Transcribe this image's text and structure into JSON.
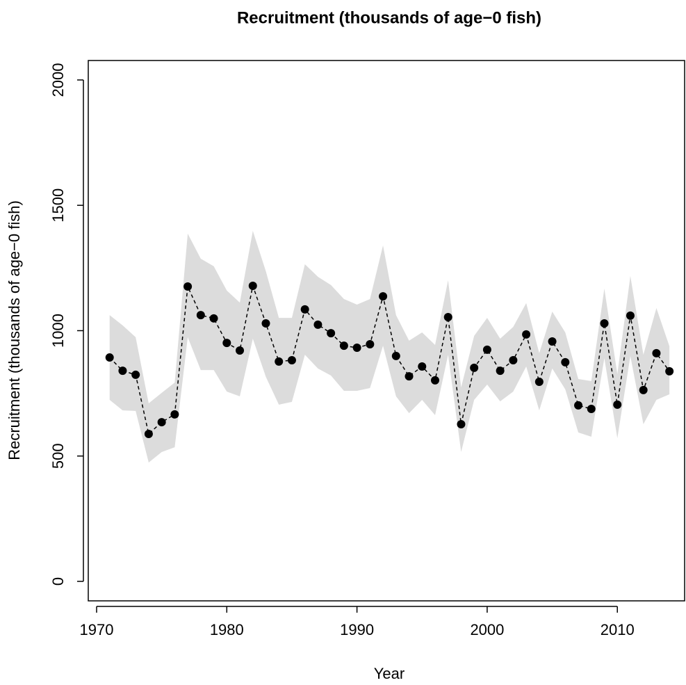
{
  "chart_data": {
    "type": "line",
    "title": "Recruitment (thousands of age−0 fish)",
    "xlabel": "Year",
    "ylabel": "Recruitment (thousands of age−0 fish)",
    "x": [
      1971,
      1972,
      1973,
      1974,
      1975,
      1976,
      1977,
      1978,
      1979,
      1980,
      1981,
      1982,
      1983,
      1984,
      1985,
      1986,
      1987,
      1988,
      1989,
      1990,
      1991,
      1992,
      1993,
      1994,
      1995,
      1996,
      1997,
      1998,
      1999,
      2000,
      2001,
      2002,
      2003,
      2004,
      2005,
      2006,
      2007,
      2008,
      2009,
      2010,
      2011,
      2012,
      2013,
      2014
    ],
    "values": [
      893,
      840,
      824,
      588,
      635,
      666,
      1176,
      1062,
      1049,
      951,
      921,
      1179,
      1029,
      877,
      882,
      1085,
      1024,
      990,
      940,
      932,
      946,
      1137,
      899,
      818,
      857,
      802,
      1054,
      627,
      852,
      924,
      840,
      882,
      985,
      796,
      957,
      874,
      702,
      688,
      1029,
      705,
      1060,
      763,
      910,
      838
    ],
    "upper": [
      1062,
      1021,
      974,
      710,
      752,
      793,
      1387,
      1287,
      1257,
      1160,
      1112,
      1398,
      1237,
      1051,
      1051,
      1265,
      1215,
      1182,
      1126,
      1104,
      1126,
      1340,
      1062,
      960,
      993,
      943,
      1201,
      774,
      979,
      1051,
      968,
      1015,
      1110,
      910,
      1076,
      993,
      807,
      799,
      1168,
      827,
      1218,
      904,
      1090,
      938
    ],
    "lower": [
      724,
      682,
      680,
      474,
      516,
      535,
      974,
      843,
      843,
      757,
      738,
      968,
      816,
      705,
      716,
      904,
      849,
      821,
      760,
      760,
      771,
      940,
      738,
      671,
      724,
      663,
      904,
      516,
      724,
      785,
      718,
      757,
      857,
      682,
      849,
      766,
      594,
      577,
      890,
      571,
      899,
      627,
      724,
      746
    ],
    "color": "#000000",
    "band_color": "#dcdcdc",
    "xlim": [
      1969.36,
      2015.22
    ],
    "ylim": [
      -77.7,
      2077.6
    ],
    "xticks": [
      1970,
      1980,
      1990,
      2000,
      2010
    ],
    "yticks": [
      0,
      500,
      1000,
      1500,
      2000
    ]
  }
}
